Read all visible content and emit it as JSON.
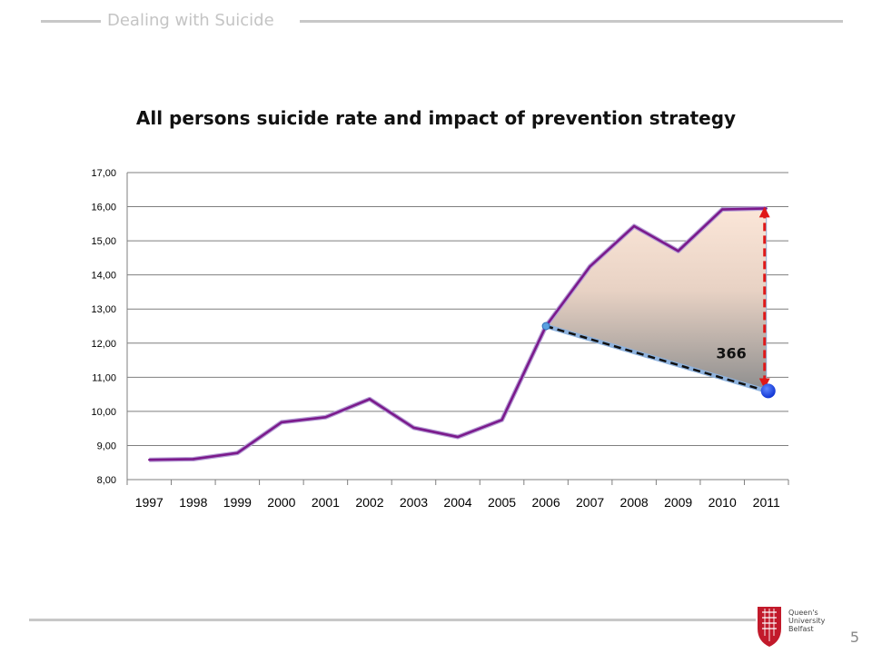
{
  "header": {
    "title": "Dealing with Suicide"
  },
  "footer": {
    "page_number": "5",
    "logo_text": "Queen's University Belfast"
  },
  "chart_data": {
    "type": "line",
    "title": "All persons suicide rate and impact of prevention strategy",
    "xlabel": "",
    "ylabel": "",
    "categories": [
      "1997",
      "1998",
      "1999",
      "2000",
      "2001",
      "2002",
      "2003",
      "2004",
      "2005",
      "2006",
      "2007",
      "2008",
      "2009",
      "2010",
      "2011"
    ],
    "series": [
      {
        "values": [
          8.58,
          8.6,
          8.78,
          9.68,
          9.83,
          10.36,
          9.52,
          9.25,
          9.75,
          12.5,
          14.25,
          15.43,
          14.7,
          15.92,
          15.95
        ]
      }
    ],
    "ylim": [
      8,
      17
    ],
    "yticks": [
      8,
      9,
      10,
      11,
      12,
      13,
      14,
      15,
      16,
      17
    ],
    "ytick_labels": [
      "8,00",
      "9,00",
      "10,00",
      "11,00",
      "12,00",
      "13,00",
      "14,00",
      "15,00",
      "16,00",
      "17,00"
    ],
    "grid": true,
    "legend": "none",
    "annotations": {
      "trend_line": {
        "from": [
          "2006",
          12.5
        ],
        "to": [
          "2011",
          10.6
        ]
      },
      "gap_label": "366",
      "gap_arrow": {
        "x": "2011",
        "y_from": 10.6,
        "y_to": 15.95
      }
    },
    "colors": {
      "line": "#7b1a8c",
      "trend": "#111111",
      "arrow": "#e01818",
      "dot": "#1a3fe0",
      "fill_top": "#fbe6d8",
      "fill_bottom": "#9a9a9a"
    }
  }
}
